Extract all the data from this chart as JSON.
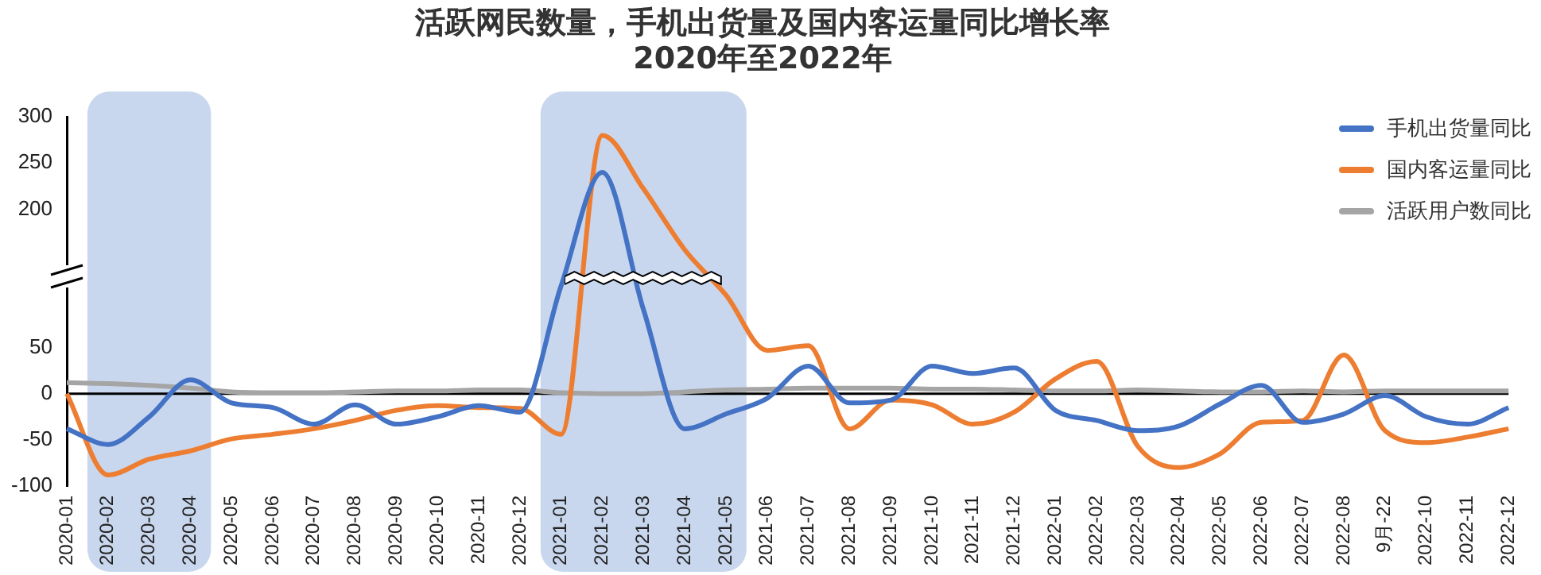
{
  "chart_data": {
    "type": "line",
    "title": "活跃网民数量，手机出货量及国内客运量同比增长率\n2020年至2022年",
    "categories": [
      "2020-01",
      "2020-02",
      "2020-03",
      "2020-04",
      "2020-05",
      "2020-06",
      "2020-07",
      "2020-08",
      "2020-09",
      "2020-10",
      "2020-11",
      "2020-12",
      "2021-01",
      "2021-02",
      "2021-03",
      "2021-04",
      "2021-05",
      "2021-06",
      "2021-07",
      "2021-08",
      "2021-09",
      "2021-10",
      "2021-11",
      "2021-12",
      "2022-01",
      "2022-02",
      "2022-03",
      "2022-04",
      "2022-05",
      "2022-06",
      "2022-07",
      "2022-08",
      "9月-22",
      "2022-10",
      "2022-11",
      "2022-12"
    ],
    "series": [
      {
        "name": "手机出货量同比",
        "color": "#4472c4",
        "values": [
          -38,
          -55,
          -25,
          15,
          -10,
          -15,
          -33,
          -12,
          -33,
          -25,
          -13,
          -20,
          117,
          240,
          91,
          -38,
          -22,
          -5,
          30,
          -10,
          -7,
          30,
          22,
          28,
          -18,
          -29,
          -40,
          -35,
          -11,
          9,
          -31,
          -22,
          -2,
          -25,
          -33,
          -15
        ]
      },
      {
        "name": "国内客运量同比",
        "color": "#ed7d31",
        "values": [
          0,
          -88,
          -71,
          -62,
          -49,
          -44,
          -38,
          -29,
          -18,
          -13,
          -15,
          -16,
          -44,
          280,
          222,
          156,
          107,
          47,
          52,
          -38,
          -7,
          -12,
          -33,
          -20,
          16,
          35,
          -57,
          -80,
          -65,
          -31,
          -29,
          42,
          -40,
          -53,
          -47,
          -38
        ]
      },
      {
        "name": "活跃用户数同比",
        "color": "#a5a5a5",
        "values": [
          12,
          11,
          9,
          6,
          2,
          1,
          1,
          2,
          3,
          3,
          4,
          4,
          1,
          0,
          0,
          2,
          4,
          5,
          6,
          6,
          6,
          5,
          5,
          4,
          3,
          3,
          4,
          3,
          2,
          2,
          3,
          2,
          3,
          3,
          3,
          3
        ]
      }
    ],
    "ylim": [
      -100,
      300
    ],
    "yticks": [
      -100,
      -50,
      0,
      50,
      200,
      250,
      300
    ],
    "ref_lines": [
      {
        "axis": "y",
        "value": 0,
        "color": "#000000"
      }
    ],
    "bands": [
      {
        "axis": "x",
        "from": "2020-02",
        "to": "2020-04",
        "color": "#c9d7ee"
      },
      {
        "axis": "x",
        "from": "2021-01",
        "to": "2021-05",
        "color": "#c9d7ee"
      }
    ],
    "legend": "top right",
    "grid": false,
    "marker": "none",
    "line_style": "solid"
  }
}
